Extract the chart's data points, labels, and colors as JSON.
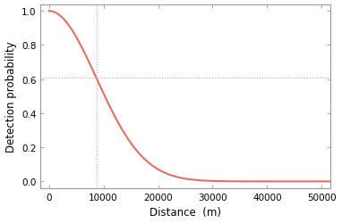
{
  "sigma": 8700,
  "x_min": -1500,
  "x_max": 51500,
  "y_min": -0.04,
  "y_max": 1.04,
  "curve_color": "#e07060",
  "curve_linewidth": 1.5,
  "vline_x": 8700,
  "hline_y": 0.6065306597126334,
  "dashed_color": "#aaaaaa",
  "dashed_linewidth": 0.8,
  "xlabel": "Distance  (m)",
  "ylabel": "Detection probability",
  "xlabel_fontsize": 8.5,
  "ylabel_fontsize": 8.5,
  "tick_fontsize": 7.5,
  "xticks": [
    0,
    10000,
    20000,
    30000,
    40000,
    50000
  ],
  "yticks": [
    0.0,
    0.2,
    0.4,
    0.6,
    0.8,
    1.0
  ],
  "background_color": "#ffffff",
  "axes_color": "#999999",
  "spine_linewidth": 0.8
}
